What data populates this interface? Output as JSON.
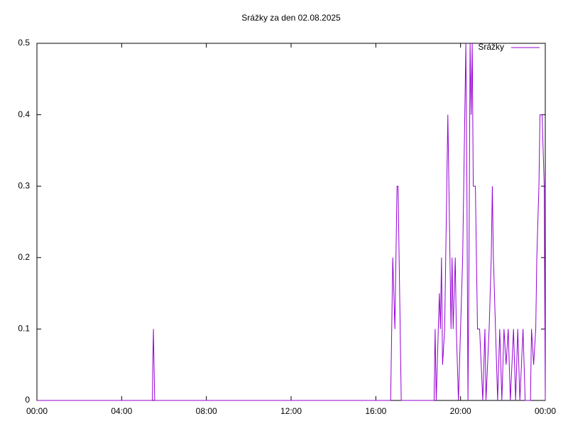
{
  "chart_data": {
    "type": "line",
    "title": "Srážky za den 02.08.2025",
    "x": [
      0,
      5.45,
      5.47,
      5.5,
      5.53,
      5.56,
      16.7,
      16.75,
      16.8,
      16.9,
      16.95,
      17.0,
      17.05,
      17.1,
      17.15,
      17.2,
      18.75,
      18.8,
      18.85,
      18.95,
      19.0,
      19.05,
      19.1,
      19.15,
      19.25,
      19.3,
      19.35,
      19.4,
      19.45,
      19.5,
      19.55,
      19.6,
      19.65,
      19.75,
      19.8,
      19.9,
      20.0,
      20.1,
      20.2,
      20.25,
      20.3,
      20.35,
      20.4,
      20.45,
      20.5,
      20.55,
      20.6,
      20.7,
      20.8,
      20.9,
      21.05,
      21.15,
      21.2,
      21.35,
      21.45,
      21.5,
      21.55,
      21.65,
      21.75,
      21.85,
      21.95,
      22.05,
      22.15,
      22.25,
      22.35,
      22.5,
      22.6,
      22.7,
      22.8,
      22.95,
      23.05,
      23.3,
      23.35,
      23.45,
      23.55,
      23.6,
      23.7,
      23.75,
      23.85,
      23.95,
      24
    ],
    "series": [
      {
        "name": "Srážky",
        "color": "#9400d3",
        "values": [
          0,
          0,
          0.05,
          0.1,
          0.05,
          0,
          0,
          0.1,
          0.2,
          0.1,
          0.2,
          0.3,
          0.3,
          0.2,
          0.1,
          0,
          0,
          0.1,
          0,
          0.1,
          0.15,
          0.1,
          0.2,
          0.05,
          0.1,
          0.2,
          0.3,
          0.4,
          0.3,
          0.2,
          0.1,
          0.2,
          0.1,
          0.2,
          0.1,
          0,
          0.1,
          0.2,
          0.4,
          0.5,
          0.3,
          0,
          0.2,
          0.5,
          0.4,
          0.5,
          0.3,
          0.3,
          0.1,
          0.1,
          0,
          0.1,
          0,
          0.1,
          0.2,
          0.3,
          0.2,
          0.1,
          0,
          0.1,
          0,
          0.1,
          0.05,
          0.1,
          0,
          0.1,
          0,
          0.1,
          0,
          0.1,
          0,
          0,
          0.1,
          0.05,
          0.1,
          0.2,
          0.3,
          0.4,
          0.4,
          0.3,
          0
        ]
      }
    ],
    "xlim": [
      0,
      24
    ],
    "xticks": [
      {
        "value": 0,
        "label": "00:00"
      },
      {
        "value": 4,
        "label": "04:00"
      },
      {
        "value": 8,
        "label": "08:00"
      },
      {
        "value": 12,
        "label": "12:00"
      },
      {
        "value": 16,
        "label": "16:00"
      },
      {
        "value": 20,
        "label": "20:00"
      },
      {
        "value": 24,
        "label": "00:00"
      }
    ],
    "ylim": [
      0,
      0.5
    ],
    "yticks": [
      0,
      0.1,
      0.2,
      0.3,
      0.4,
      0.5
    ],
    "legend": "top-right",
    "grid": false
  }
}
